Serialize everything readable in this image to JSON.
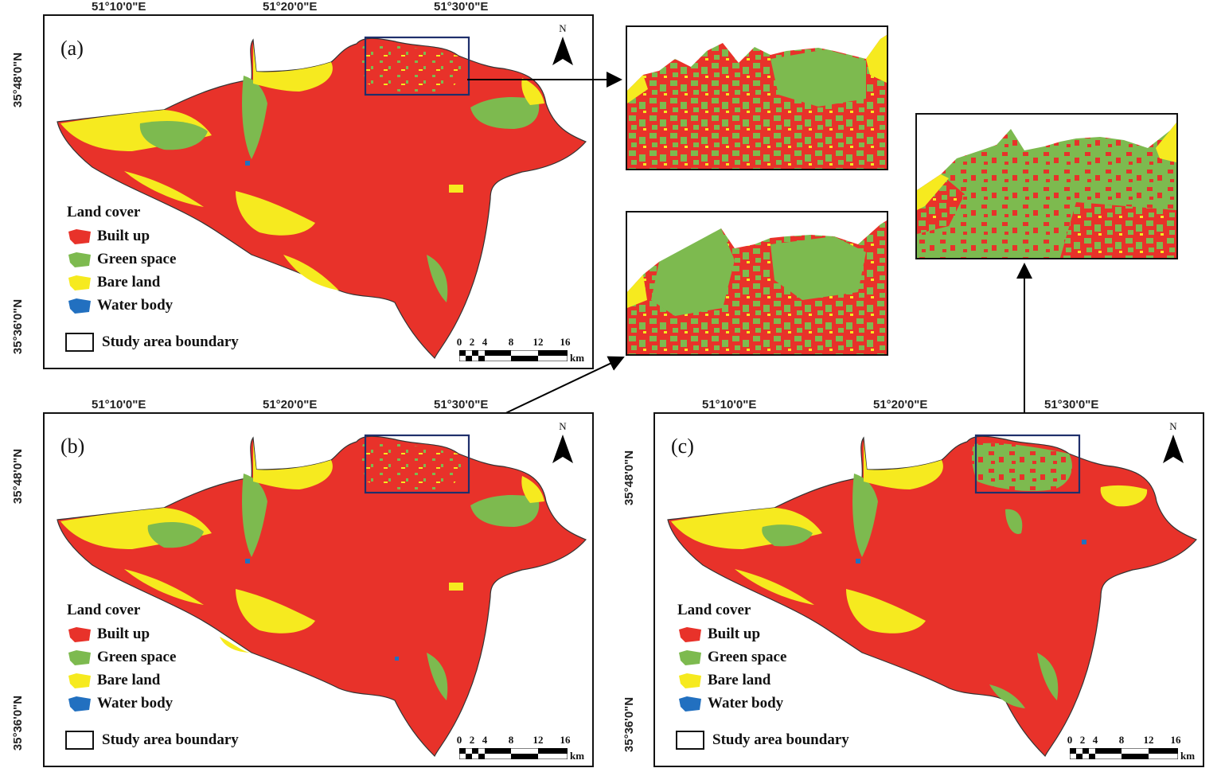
{
  "panels": [
    {
      "label": "(a)",
      "lon_ticks": [
        "51°10'0\"E",
        "51°20'0\"E",
        "51°30'0\"E"
      ],
      "lat_ticks": [
        "35°48'0\"N",
        "35°36'0\"N"
      ],
      "north": "N"
    },
    {
      "label": "(b)",
      "lon_ticks": [
        "51°10'0\"E",
        "51°20'0\"E",
        "51°30'0\"E"
      ],
      "lat_ticks": [
        "35°48'0\"N",
        "35°36'0\"N"
      ],
      "north": "N"
    },
    {
      "label": "(c)",
      "lon_ticks": [
        "51°10'0\"E",
        "51°20'0\"E",
        "51°30'0\"E"
      ],
      "lat_ticks": [
        "35°48'0\"N",
        "35°36'0\"N"
      ],
      "north": "N"
    }
  ],
  "legend": {
    "title": "Land cover",
    "items": [
      {
        "label": "Built up",
        "color": "#e8322a"
      },
      {
        "label": "Green space",
        "color": "#7dba4f"
      },
      {
        "label": "Bare land",
        "color": "#f6ea1f"
      },
      {
        "label": "Water body",
        "color": "#2270c0"
      }
    ],
    "boundary_label": "Study area boundary"
  },
  "scale": {
    "ticks": [
      "0",
      "2",
      "4",
      "8",
      "12",
      "16"
    ],
    "unit": "km"
  },
  "colors": {
    "built_up": "#e8322a",
    "green_space": "#7dba4f",
    "bare_land": "#f6ea1f",
    "water_body": "#2270c0",
    "zoom_box": "#1f2f6b"
  }
}
